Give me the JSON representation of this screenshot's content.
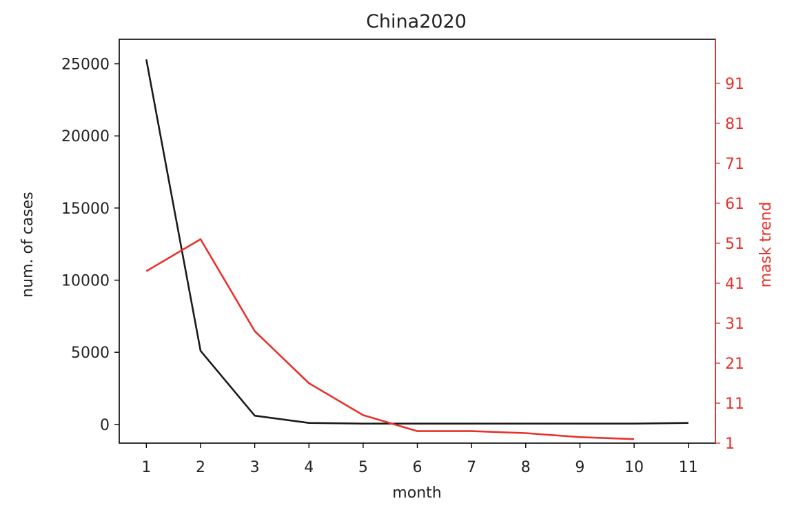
{
  "chart_data": {
    "type": "line",
    "title": "China2020",
    "xlabel": "month",
    "ylabel": "num. of cases",
    "y2label": "mask trend",
    "x": [
      1,
      2,
      3,
      4,
      5,
      6,
      7,
      8,
      9,
      10,
      11
    ],
    "xlim": [
      0.5,
      11.5
    ],
    "ylim": [
      -1300,
      26700
    ],
    "y2lim": [
      1,
      102
    ],
    "yticks": [
      0,
      5000,
      10000,
      15000,
      20000,
      25000
    ],
    "y2ticks": [
      1,
      11,
      21,
      31,
      41,
      51,
      61,
      71,
      81,
      91
    ],
    "grid": false,
    "legend": "none",
    "series": [
      {
        "axis": "left",
        "color": "#1a1a1a",
        "x": [
          1,
          2,
          3,
          4,
          5,
          6,
          7,
          8,
          9,
          10,
          11
        ],
        "values": [
          25300,
          5100,
          600,
          100,
          50,
          50,
          50,
          50,
          50,
          50,
          100
        ]
      },
      {
        "axis": "right",
        "color": "#e8312a",
        "x": [
          1,
          2,
          3,
          4,
          5,
          6,
          7,
          8,
          9,
          10
        ],
        "values": [
          44,
          52,
          29,
          16,
          8,
          4,
          4,
          3.5,
          2.5,
          2
        ]
      }
    ]
  }
}
